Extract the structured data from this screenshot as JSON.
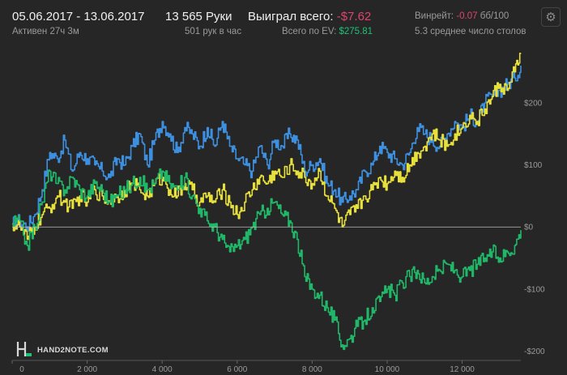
{
  "header": {
    "date_range": "05.06.2017 - 13.06.2017",
    "active": "Активен 27ч 3м",
    "hands": "13 565 Руки",
    "hands_per_hour": "501 рук в час",
    "won_label": "Выиграл всего:",
    "won_value": "-$7.62",
    "ev_label": "Всего по EV:",
    "ev_value": "$275.81",
    "winrate_label": "Винрейт:",
    "winrate_value": "-0.07",
    "winrate_unit": "бб/100",
    "tables": "5.3 среднее число столов",
    "settings_icon": "gear-icon"
  },
  "logo": {
    "text": "HAND2NOTE.COM",
    "accent": "#20c07a"
  },
  "chart_data": {
    "type": "line",
    "xlim": [
      0,
      13565
    ],
    "ylim": [
      -215,
      290
    ],
    "x_ticks": [
      0,
      2000,
      4000,
      6000,
      8000,
      10000,
      12000
    ],
    "x_tick_labels": [
      "0",
      "2 000",
      "4 000",
      "6 000",
      "8 000",
      "10 000",
      "12 000"
    ],
    "y_ticks": [
      200,
      100,
      0,
      -100,
      -200
    ],
    "y_tick_labels": [
      "$200",
      "$100",
      "$0",
      "-$100",
      "-$200"
    ],
    "grid": false,
    "zero_line": true,
    "series": [
      {
        "color": "#3d8fe0",
        "x": [
          0,
          200,
          400,
          600,
          800,
          1000,
          1200,
          1400,
          1600,
          1800,
          2000,
          2200,
          2400,
          2600,
          2800,
          3000,
          3200,
          3400,
          3600,
          3800,
          4000,
          4200,
          4400,
          4600,
          4800,
          5000,
          5200,
          5400,
          5600,
          5800,
          6000,
          6200,
          6400,
          6600,
          6800,
          7000,
          7200,
          7400,
          7600,
          7800,
          8000,
          8200,
          8400,
          8600,
          8800,
          9000,
          9200,
          9400,
          9600,
          9800,
          10000,
          10200,
          10400,
          10600,
          10800,
          11000,
          11200,
          11400,
          11600,
          11800,
          12000,
          12200,
          12400,
          12600,
          12800,
          13000,
          13200,
          13400,
          13565
        ],
        "y": [
          5,
          10,
          0,
          20,
          60,
          120,
          110,
          140,
          90,
          120,
          110,
          100,
          90,
          80,
          110,
          100,
          130,
          150,
          100,
          140,
          170,
          150,
          120,
          160,
          150,
          130,
          160,
          130,
          170,
          130,
          110,
          100,
          90,
          130,
          100,
          140,
          130,
          150,
          140,
          90,
          100,
          110,
          70,
          60,
          40,
          50,
          60,
          90,
          100,
          130,
          120,
          110,
          100,
          120,
          160,
          150,
          140,
          130,
          150,
          170,
          160,
          180,
          170,
          200,
          210,
          220,
          230,
          240,
          260
        ]
      },
      {
        "color": "#e8e03a",
        "x": [
          0,
          200,
          400,
          600,
          800,
          1000,
          1200,
          1400,
          1600,
          1800,
          2000,
          2200,
          2400,
          2600,
          2800,
          3000,
          3200,
          3400,
          3600,
          3800,
          4000,
          4200,
          4400,
          4600,
          4800,
          5000,
          5200,
          5400,
          5600,
          5800,
          6000,
          6200,
          6400,
          6600,
          6800,
          7000,
          7200,
          7400,
          7600,
          7800,
          8000,
          8200,
          8400,
          8600,
          8800,
          9000,
          9200,
          9400,
          9600,
          9800,
          10000,
          10200,
          10400,
          10600,
          10800,
          11000,
          11200,
          11400,
          11600,
          11800,
          12000,
          12200,
          12400,
          12600,
          12800,
          13000,
          13200,
          13400,
          13565
        ],
        "y": [
          5,
          0,
          -20,
          0,
          20,
          30,
          50,
          40,
          30,
          50,
          40,
          60,
          50,
          40,
          50,
          60,
          70,
          60,
          50,
          70,
          80,
          60,
          50,
          70,
          60,
          40,
          50,
          40,
          60,
          40,
          20,
          40,
          60,
          80,
          70,
          90,
          80,
          100,
          90,
          80,
          70,
          90,
          50,
          30,
          0,
          20,
          30,
          50,
          60,
          80,
          70,
          90,
          80,
          100,
          120,
          130,
          150,
          140,
          130,
          150,
          160,
          180,
          170,
          190,
          210,
          230,
          220,
          250,
          280
        ]
      },
      {
        "color": "#20b868",
        "x": [
          0,
          200,
          400,
          600,
          800,
          1000,
          1200,
          1400,
          1600,
          1800,
          2000,
          2200,
          2400,
          2600,
          2800,
          3000,
          3200,
          3400,
          3600,
          3800,
          4000,
          4200,
          4400,
          4600,
          4800,
          5000,
          5200,
          5400,
          5600,
          5800,
          6000,
          6200,
          6400,
          6600,
          6800,
          7000,
          7200,
          7400,
          7600,
          7800,
          8000,
          8200,
          8400,
          8600,
          8800,
          9000,
          9200,
          9400,
          9600,
          9800,
          10000,
          10200,
          10400,
          10600,
          10800,
          11000,
          11200,
          11400,
          11600,
          11800,
          12000,
          12200,
          12400,
          12600,
          12800,
          13000,
          13200,
          13400,
          13565
        ],
        "y": [
          5,
          10,
          -30,
          0,
          40,
          90,
          70,
          60,
          80,
          60,
          50,
          70,
          60,
          40,
          50,
          60,
          70,
          80,
          60,
          70,
          90,
          70,
          60,
          80,
          50,
          30,
          10,
          0,
          -20,
          -40,
          -30,
          -20,
          0,
          20,
          30,
          40,
          20,
          10,
          -20,
          -80,
          -100,
          -110,
          -130,
          -150,
          -190,
          -180,
          -160,
          -150,
          -130,
          -120,
          -100,
          -110,
          -90,
          -80,
          -70,
          -90,
          -80,
          -70,
          -60,
          -70,
          -80,
          -70,
          -60,
          -50,
          -40,
          -50,
          -40,
          -30,
          -5
        ]
      }
    ]
  }
}
